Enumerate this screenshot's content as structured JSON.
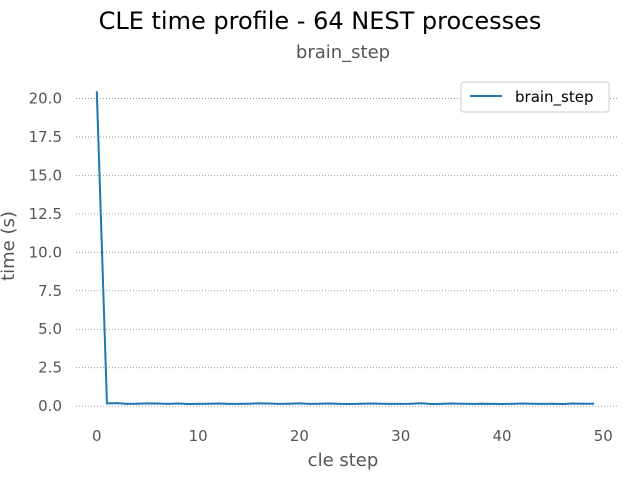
{
  "chart_data": {
    "type": "line",
    "title": "CLE time profile - 64 NEST processes",
    "subtitle": "brain_step",
    "xlabel": "cle step",
    "ylabel": "time (s)",
    "xlim": [
      -2.45,
      51.45
    ],
    "ylim": [
      -0.9,
      21.2
    ],
    "x_ticks": [
      0,
      10,
      20,
      30,
      40,
      50
    ],
    "x_tick_labels": [
      "0",
      "10",
      "20",
      "30",
      "40",
      "50"
    ],
    "y_ticks": [
      0.0,
      2.5,
      5.0,
      7.5,
      10.0,
      12.5,
      15.0,
      17.5,
      20.0
    ],
    "y_tick_labels": [
      "0.0",
      "2.5",
      "5.0",
      "7.5",
      "10.0",
      "12.5",
      "15.0",
      "17.5",
      "20.0"
    ],
    "grid": "horizontal-dotted",
    "legend_position": "top-right",
    "series": [
      {
        "name": "brain_step",
        "color": "#1f77b4",
        "x": [
          0,
          1,
          2,
          3,
          4,
          5,
          6,
          7,
          8,
          9,
          10,
          11,
          12,
          13,
          14,
          15,
          16,
          17,
          18,
          19,
          20,
          21,
          22,
          23,
          24,
          25,
          26,
          27,
          28,
          29,
          30,
          31,
          32,
          33,
          34,
          35,
          36,
          37,
          38,
          39,
          40,
          41,
          42,
          43,
          44,
          45,
          46,
          47,
          48,
          49
        ],
        "y": [
          20.4,
          0.18,
          0.2,
          0.15,
          0.16,
          0.18,
          0.17,
          0.15,
          0.17,
          0.14,
          0.15,
          0.16,
          0.17,
          0.15,
          0.15,
          0.16,
          0.18,
          0.17,
          0.15,
          0.16,
          0.18,
          0.15,
          0.16,
          0.17,
          0.15,
          0.14,
          0.16,
          0.17,
          0.16,
          0.15,
          0.15,
          0.16,
          0.19,
          0.14,
          0.15,
          0.17,
          0.16,
          0.15,
          0.16,
          0.15,
          0.14,
          0.15,
          0.17,
          0.16,
          0.15,
          0.16,
          0.14,
          0.17,
          0.16,
          0.16
        ]
      }
    ]
  }
}
